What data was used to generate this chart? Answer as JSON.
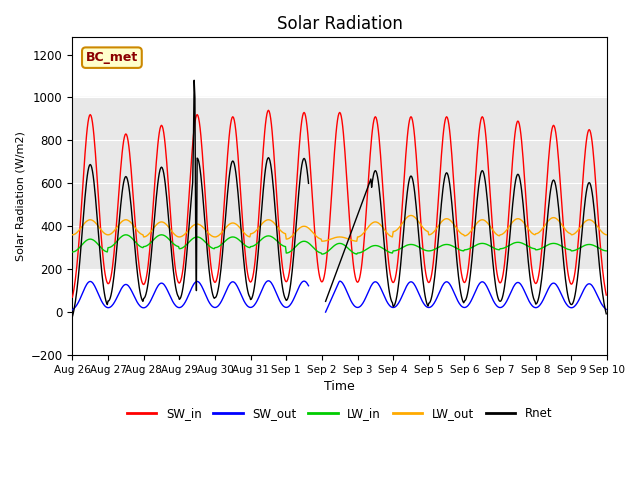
{
  "title": "Solar Radiation",
  "ylabel": "Solar Radiation (W/m2)",
  "xlabel": "Time",
  "ylim": [
    -200,
    1280
  ],
  "yticks": [
    -200,
    0,
    200,
    400,
    600,
    800,
    1000,
    1200
  ],
  "xtick_labels": [
    "Aug 26",
    "Aug 27",
    "Aug 28",
    "Aug 29",
    "Aug 30",
    "Aug 31",
    "Sep 1",
    "Sep 2",
    "Sep 3",
    "Sep 4",
    "Sep 5",
    "Sep 6",
    "Sep 7",
    "Sep 8",
    "Sep 9",
    "Sep 10"
  ],
  "colors": {
    "SW_in": "#ff0000",
    "SW_out": "#0000ff",
    "LW_in": "#00cc00",
    "LW_out": "#ffaa00",
    "Rnet": "#000000"
  },
  "annotation_text": "BC_met",
  "annotation_bbox": {
    "facecolor": "#ffffcc",
    "edgecolor": "#cc8800",
    "boxstyle": "round,pad=0.3"
  },
  "shaded_region": [
    200,
    1000
  ],
  "shaded_color": "#e8e8e8",
  "n_days": 15,
  "sw_in_peaks": [
    920,
    830,
    870,
    920,
    910,
    940,
    930,
    930,
    910,
    910,
    910,
    910,
    890,
    870,
    850
  ],
  "lw_in_day": [
    340,
    360,
    360,
    350,
    350,
    355,
    330,
    320,
    310,
    315,
    315,
    320,
    325,
    320,
    315
  ],
  "lw_in_night": [
    280,
    300,
    305,
    295,
    300,
    305,
    275,
    270,
    275,
    285,
    285,
    290,
    295,
    290,
    285
  ],
  "lw_out_day": [
    430,
    430,
    420,
    410,
    415,
    430,
    400,
    350,
    420,
    450,
    435,
    430,
    435,
    440,
    430
  ],
  "lw_out_night": [
    360,
    360,
    350,
    350,
    350,
    365,
    340,
    330,
    350,
    375,
    360,
    355,
    360,
    365,
    360
  ]
}
